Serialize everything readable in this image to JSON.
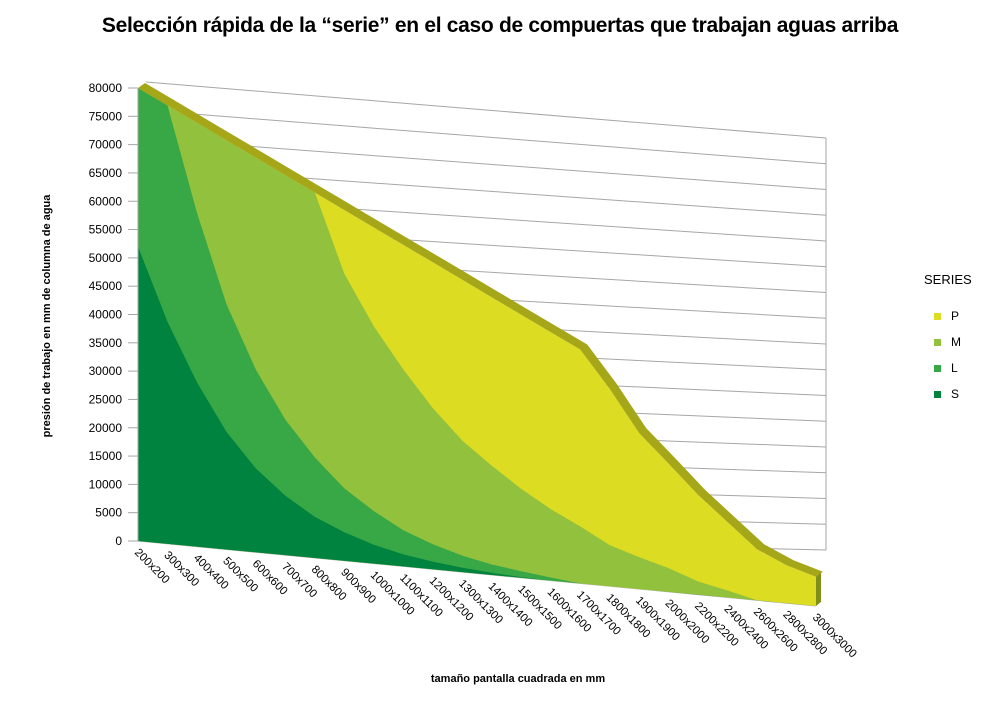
{
  "chart_data": {
    "type": "area",
    "title": "Selección rápida de la “serie” en el caso de compuertas que trabajan aguas arriba",
    "xlabel": "tamaño pantalla cuadrada en mm",
    "ylabel": "presión de trabajo en mm de columna de agua",
    "ylim": [
      0,
      80000
    ],
    "yticks": [
      0,
      5000,
      10000,
      15000,
      20000,
      25000,
      30000,
      35000,
      40000,
      45000,
      50000,
      55000,
      60000,
      65000,
      70000,
      75000,
      80000
    ],
    "categories": [
      "200x200",
      "300x300",
      "400x400",
      "500x500",
      "600x600",
      "700x700",
      "800x800",
      "900x900",
      "1000x1000",
      "1100x1100",
      "1200x1200",
      "1300x1300",
      "1400x1400",
      "1500x1500",
      "1600x1600",
      "1700x1700",
      "1800x1800",
      "1900x1900",
      "2000x2000",
      "2200x2200",
      "2400x2400",
      "2600x2600",
      "2800x2800",
      "3000x3000"
    ],
    "series": [
      {
        "name": "P",
        "color": "#DCDC22",
        "values": [
          80000,
          80000,
          80000,
          80000,
          80000,
          80000,
          80000,
          80000,
          80000,
          80000,
          80000,
          80000,
          80000,
          80000,
          80000,
          80000,
          72000,
          61000,
          54000,
          45500,
          37500,
          28000,
          23000,
          20000
        ]
      },
      {
        "name": "M",
        "color": "#92C13E",
        "values": [
          80000,
          80000,
          80000,
          80000,
          80000,
          80000,
          80000,
          65500,
          56500,
          49000,
          42000,
          36000,
          31500,
          27000,
          23000,
          19500,
          15000,
          12500,
          10000,
          6000,
          3500,
          0,
          0,
          0
        ]
      },
      {
        "name": "L",
        "color": "#37A845",
        "values": [
          80000,
          80000,
          63000,
          48000,
          37000,
          28500,
          22000,
          16500,
          12500,
          9000,
          6500,
          4500,
          3000,
          2000,
          1000,
          0,
          0,
          0,
          0,
          0,
          0,
          0,
          0,
          0
        ]
      },
      {
        "name": "S",
        "color": "#00833F",
        "values": [
          52000,
          40500,
          31000,
          23000,
          17000,
          12500,
          9000,
          6500,
          4500,
          3000,
          2000,
          1200,
          600,
          200,
          0,
          0,
          0,
          0,
          0,
          0,
          0,
          0,
          0,
          0
        ]
      }
    ],
    "legend": {
      "title": "SERIES",
      "position": "right",
      "order": [
        "P",
        "M",
        "L",
        "S"
      ]
    },
    "grid": true
  }
}
